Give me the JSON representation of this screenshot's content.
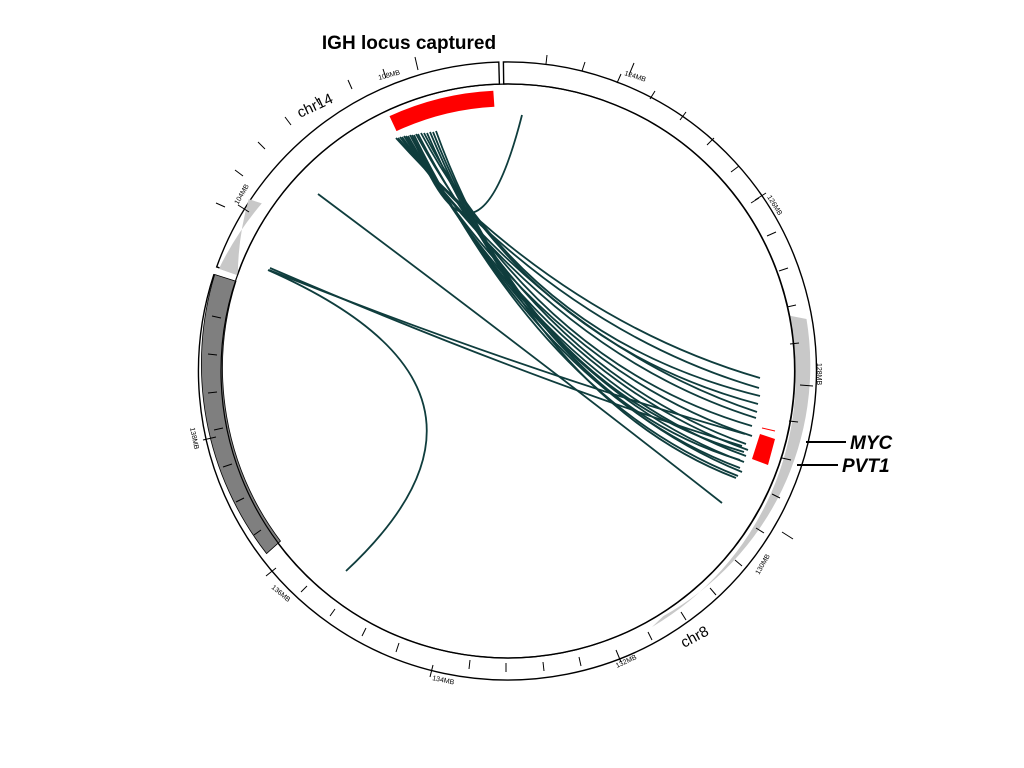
{
  "title": "IGH locus captured",
  "chromosomes": [
    {
      "name": "chr14",
      "ticks": [
        "108MB",
        "104MB"
      ]
    },
    {
      "name": "chr8",
      "ticks": [
        "124MB",
        "126MB",
        "128MB",
        "130MB",
        "132MB",
        "134MB",
        "136MB",
        "138MB"
      ]
    }
  ],
  "genes": [
    "MYC",
    "PVT1"
  ],
  "colors": {
    "highlight": "#ff0000",
    "link": "#0f3d3d",
    "band_light": "#c8c8c8",
    "band_dark": "#7f7f7f"
  }
}
